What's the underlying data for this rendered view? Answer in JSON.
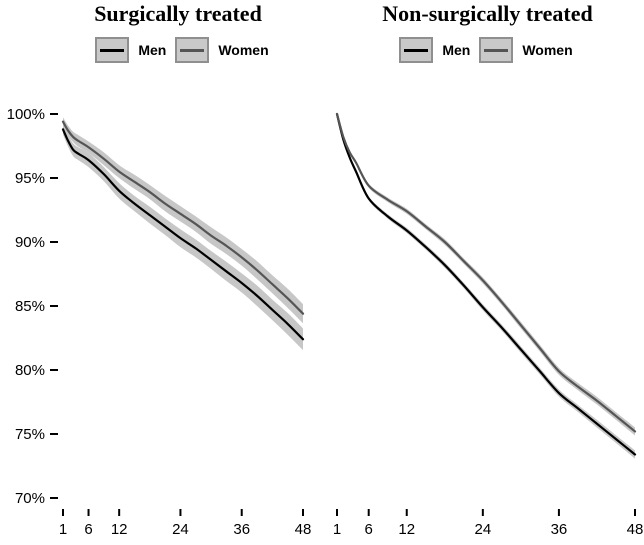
{
  "figure": {
    "background": "#ffffff",
    "accent_black": "#000000",
    "accent_gray_line": "#555555",
    "band_color": "#c7c7c7",
    "legend_box_fill": "#c9c9c9",
    "legend_box_border": "#8f8f8f"
  },
  "chart_data": [
    {
      "type": "line",
      "title": "Surgically treated",
      "xlabel": "",
      "ylabel": "",
      "xlim": [
        1,
        48
      ],
      "ylim": [
        70,
        100
      ],
      "grid": false,
      "legend_position": "top",
      "x_ticks": [
        1,
        6,
        12,
        24,
        36,
        48
      ],
      "x_tick_labels": [
        "1",
        "6",
        "12",
        "24",
        "36",
        "48"
      ],
      "y_ticks": [
        100,
        95,
        90,
        85,
        80,
        75,
        70
      ],
      "y_tick_labels": [
        "100%",
        "95%",
        "90%",
        "85%",
        "80%",
        "75%",
        "70%"
      ],
      "x": [
        1,
        2,
        3,
        4,
        6,
        9,
        12,
        15,
        18,
        21,
        24,
        27,
        30,
        33,
        36,
        39,
        42,
        45,
        48
      ],
      "series": [
        {
          "name": "Men",
          "color": "#000000",
          "band_color": "#c7c7c7",
          "values": [
            98.8,
            97.9,
            97.2,
            96.9,
            96.4,
            95.3,
            94.0,
            93.0,
            92.1,
            91.2,
            90.3,
            89.5,
            88.6,
            87.7,
            86.8,
            85.8,
            84.7,
            83.6,
            82.4
          ],
          "ci_half_width": [
            0.4,
            0.45,
            0.5,
            0.5,
            0.55,
            0.55,
            0.6,
            0.6,
            0.65,
            0.65,
            0.7,
            0.7,
            0.7,
            0.75,
            0.75,
            0.8,
            0.8,
            0.85,
            0.85
          ]
        },
        {
          "name": "Women",
          "color": "#555555",
          "band_color": "#c7c7c7",
          "values": [
            99.4,
            98.7,
            98.2,
            97.9,
            97.4,
            96.5,
            95.5,
            94.7,
            93.9,
            93.0,
            92.2,
            91.4,
            90.5,
            89.7,
            88.8,
            87.8,
            86.7,
            85.6,
            84.4
          ],
          "ci_half_width": [
            0.35,
            0.4,
            0.4,
            0.45,
            0.45,
            0.5,
            0.5,
            0.55,
            0.55,
            0.6,
            0.6,
            0.6,
            0.65,
            0.65,
            0.65,
            0.7,
            0.7,
            0.75,
            0.75
          ]
        }
      ]
    },
    {
      "type": "line",
      "title": "Non-surgically treated",
      "xlabel": "",
      "ylabel": "",
      "xlim": [
        1,
        48
      ],
      "ylim": [
        70,
        100
      ],
      "grid": false,
      "legend_position": "top",
      "x_ticks": [
        1,
        6,
        12,
        24,
        36,
        48
      ],
      "x_tick_labels": [
        "1",
        "6",
        "12",
        "24",
        "36",
        "48"
      ],
      "y_ticks": [
        100,
        95,
        90,
        85,
        80,
        75,
        70
      ],
      "y_tick_labels": [
        "100%",
        "95%",
        "90%",
        "85%",
        "80%",
        "75%",
        "70%"
      ],
      "x": [
        1,
        2,
        3,
        4,
        6,
        9,
        12,
        15,
        18,
        21,
        24,
        27,
        30,
        33,
        36,
        39,
        42,
        45,
        48
      ],
      "series": [
        {
          "name": "Men",
          "color": "#000000",
          "band_color": "#c7c7c7",
          "values": [
            100,
            98.0,
            96.6,
            95.5,
            93.4,
            92.0,
            90.9,
            89.6,
            88.2,
            86.6,
            84.9,
            83.3,
            81.6,
            79.9,
            78.2,
            77.0,
            75.8,
            74.6,
            73.4
          ],
          "ci_half_width": [
            0.08,
            0.1,
            0.12,
            0.14,
            0.16,
            0.18,
            0.2,
            0.2,
            0.22,
            0.22,
            0.24,
            0.24,
            0.26,
            0.26,
            0.28,
            0.28,
            0.3,
            0.3,
            0.32
          ]
        },
        {
          "name": "Women",
          "color": "#555555",
          "band_color": "#c7c7c7",
          "values": [
            100,
            98.2,
            97.0,
            96.2,
            94.4,
            93.3,
            92.4,
            91.2,
            90.0,
            88.5,
            87.0,
            85.3,
            83.5,
            81.7,
            79.9,
            78.7,
            77.6,
            76.4,
            75.2
          ],
          "ci_half_width": [
            0.08,
            0.1,
            0.12,
            0.14,
            0.16,
            0.18,
            0.2,
            0.2,
            0.22,
            0.22,
            0.24,
            0.24,
            0.26,
            0.26,
            0.28,
            0.28,
            0.3,
            0.3,
            0.32
          ]
        }
      ]
    }
  ]
}
